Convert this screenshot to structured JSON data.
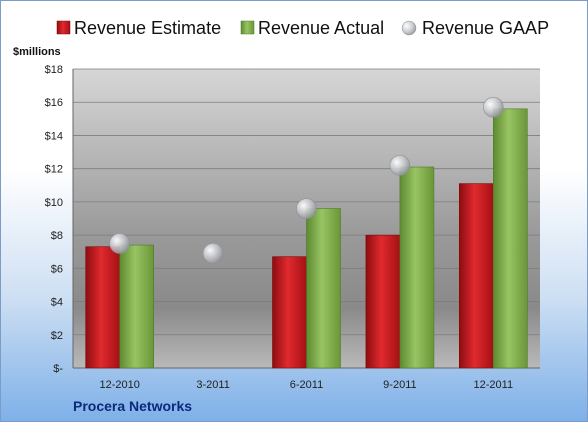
{
  "company": "Procera Networks",
  "colors": {
    "estimate": "#c8151b",
    "actual": "#7fb04a",
    "gaap": "#c9ccd2"
  },
  "chart_data": {
    "type": "bar",
    "ylabel": "$millions",
    "ylim": [
      0,
      18
    ],
    "ytick_step": 2,
    "ytick_labels": [
      "$-",
      "$2",
      "$4",
      "$6",
      "$8",
      "$10",
      "$12",
      "$14",
      "$16",
      "$18"
    ],
    "grid": true,
    "legend_position": "top",
    "categories": [
      "12-2010",
      "3-2011",
      "6-2011",
      "9-2011",
      "12-2011"
    ],
    "series": [
      {
        "name": "Revenue Estimate",
        "kind": "bar",
        "values": [
          7.3,
          null,
          6.7,
          8.0,
          11.1
        ]
      },
      {
        "name": "Revenue Actual",
        "kind": "bar",
        "values": [
          7.4,
          null,
          9.6,
          12.1,
          15.6
        ]
      },
      {
        "name": "Revenue GAAP",
        "kind": "marker",
        "values": [
          7.5,
          6.9,
          9.6,
          12.2,
          15.7
        ]
      }
    ]
  }
}
